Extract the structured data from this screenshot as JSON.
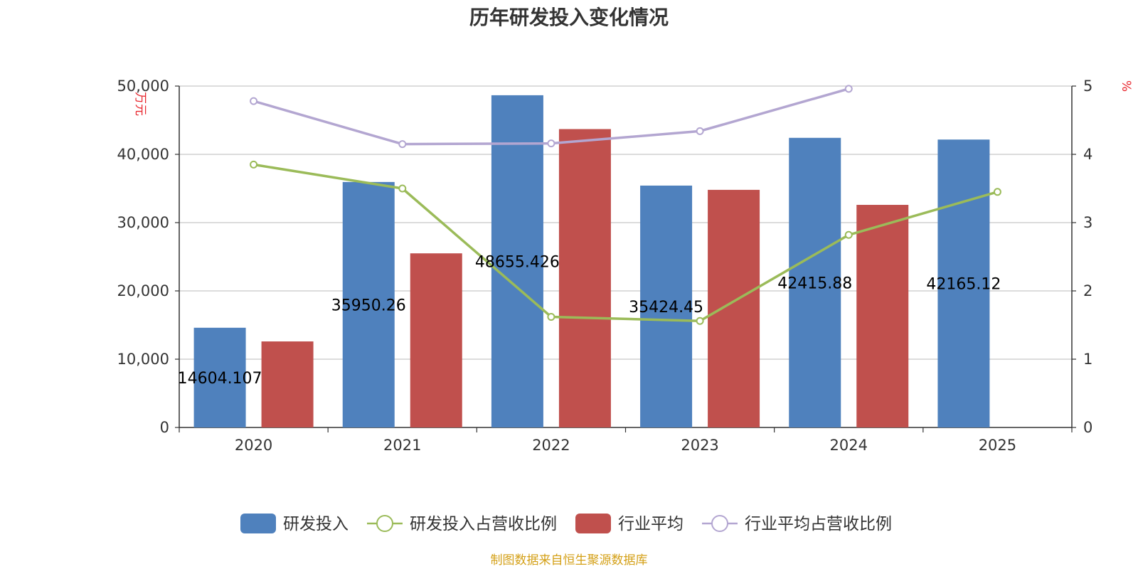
{
  "chart_data": {
    "type": "bar",
    "title": "历年研发投入变化情况",
    "categories": [
      "2020",
      "2021",
      "2022",
      "2023",
      "2024",
      "2025"
    ],
    "left_axis": {
      "unit": "万元",
      "ylim": [
        0,
        50000
      ],
      "ticks": [
        "0",
        "10,000",
        "20,000",
        "30,000",
        "40,000",
        "50,000"
      ]
    },
    "right_axis": {
      "unit": "%",
      "ylim": [
        0,
        5
      ],
      "ticks": [
        "0",
        "1",
        "2",
        "3",
        "4",
        "5"
      ]
    },
    "grid": true,
    "legend_position": "bottom",
    "series": [
      {
        "name": "研发投入",
        "kind": "bar",
        "axis": "left",
        "color": "#4f81bd",
        "values": [
          14604.107,
          35950.26,
          48655.426,
          35424.45,
          42415.88,
          42165.12
        ],
        "labels": [
          "14604.107",
          "35950.26",
          "48655.426",
          "35424.45",
          "42415.88",
          "42165.12"
        ]
      },
      {
        "name": "研发投入占营收比例",
        "kind": "line",
        "axis": "right",
        "color": "#9bbb59",
        "values": [
          3.85,
          3.5,
          1.62,
          1.56,
          2.82,
          3.45
        ]
      },
      {
        "name": "行业平均",
        "kind": "bar",
        "axis": "left",
        "color": "#c0504d",
        "values": [
          12600,
          25500,
          43700,
          34800,
          32600,
          null
        ]
      },
      {
        "name": "行业平均占营收比例",
        "kind": "line",
        "axis": "right",
        "color": "#b3a6d1",
        "values": [
          4.78,
          4.15,
          4.16,
          4.34,
          4.96,
          null
        ]
      }
    ]
  },
  "source": "制图数据来自恒生聚源数据库"
}
